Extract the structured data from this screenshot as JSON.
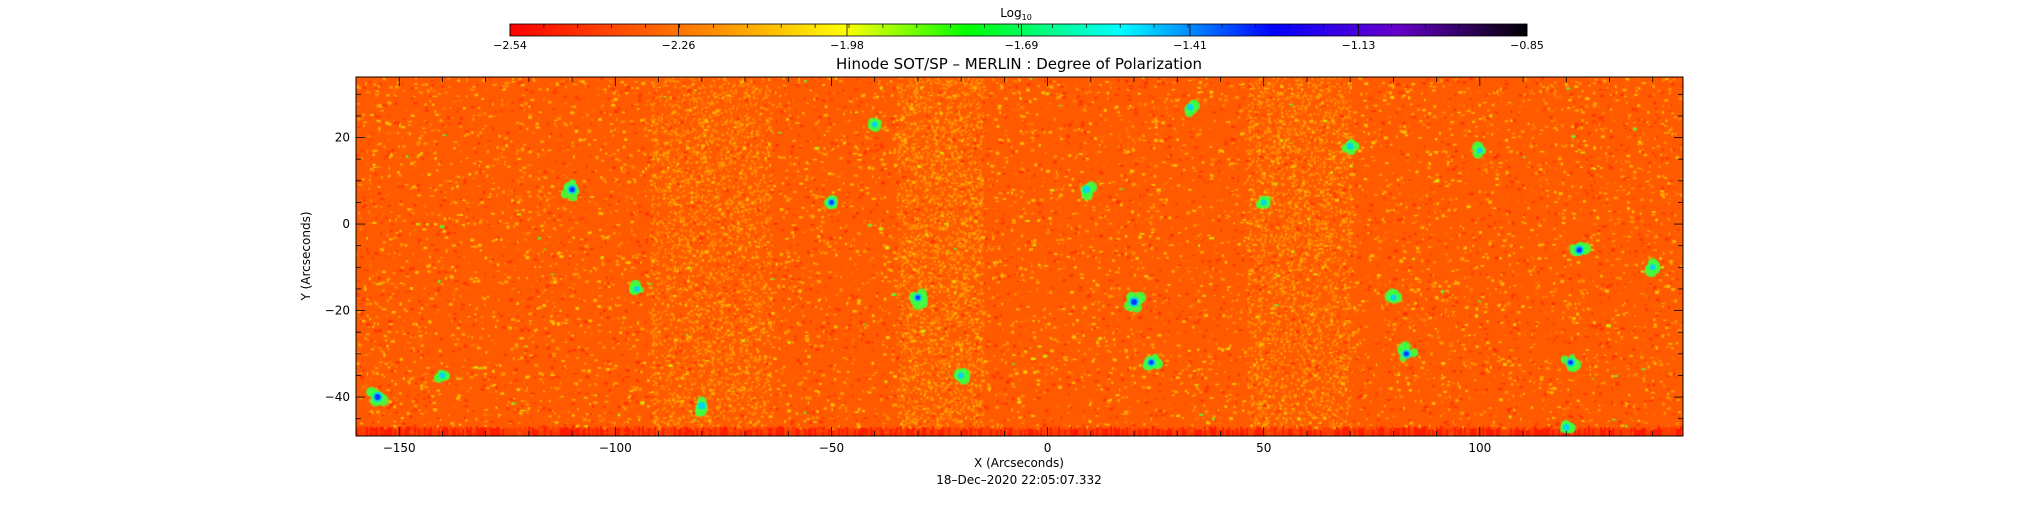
{
  "chart_data": {
    "type": "heatmap",
    "title": "Hinode SOT/SP – MERLIN : Degree of Polarization",
    "xlabel": "X (Arcseconds)",
    "ylabel": "Y (Arcseconds)",
    "timestamp": "18–Dec–2020 22:05:07.332",
    "xlim": [
      -160,
      147
    ],
    "ylim": [
      -49,
      34
    ],
    "x_ticks": [
      -150,
      -100,
      -50,
      0,
      50,
      100
    ],
    "x_tick_labels": [
      "−150",
      "−100",
      "−50",
      "0",
      "50",
      "100"
    ],
    "y_ticks": [
      -40,
      -20,
      0,
      20
    ],
    "y_tick_labels": [
      "−40",
      "−20",
      "0",
      "20"
    ],
    "colorbar": {
      "label": "Log",
      "label_subscript": "10",
      "range": [
        -2.54,
        -0.85
      ],
      "ticks": [
        -2.54,
        -2.26,
        -1.98,
        -1.69,
        -1.41,
        -1.13,
        -0.85
      ],
      "tick_labels": [
        "−2.54",
        "−2.26",
        "−1.98",
        "−1.69",
        "−1.41",
        "−1.13",
        "−0.85"
      ],
      "stops": [
        {
          "value": 0.0,
          "color": "#ff0000"
        },
        {
          "value": 0.2,
          "color": "#ff8c00"
        },
        {
          "value": 0.33,
          "color": "#ffff00"
        },
        {
          "value": 0.45,
          "color": "#00ff00"
        },
        {
          "value": 0.6,
          "color": "#00ffff"
        },
        {
          "value": 0.75,
          "color": "#0000ff"
        },
        {
          "value": 0.87,
          "color": "#6600cc"
        },
        {
          "value": 1.0,
          "color": "#000000"
        }
      ]
    },
    "field_colors": {
      "background": "#ff5a00",
      "speckle": [
        "#ff3000",
        "#ff7000",
        "#ffa000",
        "#ffcc00"
      ],
      "patch_edge": "#40ff40",
      "patch_mid": "#00d0ff",
      "patch_core": "#0030ff"
    },
    "features": [
      {
        "x": -155,
        "y": -40,
        "strength": 1.0
      },
      {
        "x": -110,
        "y": 8,
        "strength": 0.9
      },
      {
        "x": 20,
        "y": -18,
        "strength": 1.0
      },
      {
        "x": 24,
        "y": -32,
        "strength": 0.8
      },
      {
        "x": 123,
        "y": -6,
        "strength": 0.95
      },
      {
        "x": 83,
        "y": -30,
        "strength": 0.85
      },
      {
        "x": 121,
        "y": -32,
        "strength": 0.8
      },
      {
        "x": -50,
        "y": 5,
        "strength": 0.8
      },
      {
        "x": -30,
        "y": -17,
        "strength": 0.8
      },
      {
        "x": 9,
        "y": 8,
        "strength": 0.7
      },
      {
        "x": 33,
        "y": 27,
        "strength": 0.6
      },
      {
        "x": 70,
        "y": 18,
        "strength": 0.6
      },
      {
        "x": -80,
        "y": -42,
        "strength": 0.7
      },
      {
        "x": 120,
        "y": -47,
        "strength": 0.6
      },
      {
        "x": -140,
        "y": -35,
        "strength": 0.55
      },
      {
        "x": -20,
        "y": -35,
        "strength": 0.55
      },
      {
        "x": 80,
        "y": -17,
        "strength": 0.55
      },
      {
        "x": 50,
        "y": 5,
        "strength": 0.5
      },
      {
        "x": -40,
        "y": 23,
        "strength": 0.5
      },
      {
        "x": 100,
        "y": 17,
        "strength": 0.5
      },
      {
        "x": -95,
        "y": -15,
        "strength": 0.5
      },
      {
        "x": 140,
        "y": -10,
        "strength": 0.5
      }
    ]
  }
}
